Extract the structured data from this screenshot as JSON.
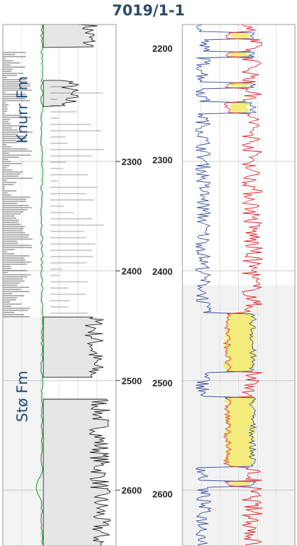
{
  "chart_data": {
    "type": "line",
    "title": "7019/1-1",
    "formations": [
      {
        "name": "Knurr Fm",
        "top_depth": 2175,
        "base_depth": 2442
      },
      {
        "name": "Stø Fm",
        "top_depth": 2442,
        "base_depth": 2651
      }
    ],
    "left_panel": {
      "depth_scale": "measured depth",
      "ticks": [
        "2300",
        "2400",
        "2500",
        "2600"
      ],
      "ylim": [
        2175,
        2651
      ],
      "grid": true,
      "fill_color": "#e6e6e6",
      "green_curve_color": "#2e9e4e",
      "fill_intervals": [
        {
          "top": 2175,
          "base": 2196,
          "level": 0.55
        },
        {
          "top": 2226,
          "base": 2250,
          "level": 0.72
        },
        {
          "top": 2442,
          "base": 2497,
          "level": 0.5
        },
        {
          "top": 2517,
          "base": 2651,
          "level": 0.45
        }
      ]
    },
    "right_panel": {
      "depth_scale": "true vertical depth",
      "ticks": [
        "2200",
        "2300",
        "2400",
        "2500",
        "2600"
      ],
      "ylim": [
        2183,
        2651
      ],
      "grid": true,
      "blue_curve_color": "#3b4fa0",
      "red_curve_color": "#e0232b",
      "crossover_fill_color": "#f3ec7c",
      "crossover_intervals": [
        {
          "top": 2190,
          "base": 2196
        },
        {
          "top": 2208,
          "base": 2213
        },
        {
          "top": 2235,
          "base": 2240
        },
        {
          "top": 2253,
          "base": 2263
        },
        {
          "top": 2442,
          "base": 2495
        },
        {
          "top": 2517,
          "base": 2580
        },
        {
          "top": 2593,
          "base": 2598
        }
      ],
      "shaded_interval": {
        "top": 2417,
        "base": 2651,
        "color": "#f2f2f2"
      }
    }
  }
}
